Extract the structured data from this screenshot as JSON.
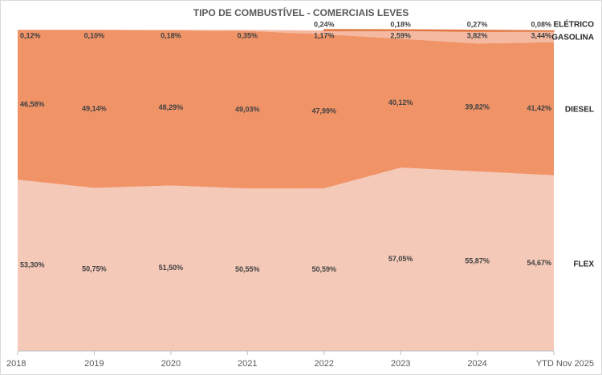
{
  "chart_data": {
    "type": "stacked-area-100",
    "title": "TIPO DE COMBUSTÍVEL - COMERCIAIS LEVES",
    "categories": [
      "2018",
      "2019",
      "2020",
      "2021",
      "2022",
      "2023",
      "2024",
      "YTD Nov 2025"
    ],
    "ylim": [
      0,
      100
    ],
    "series": [
      {
        "name": "FLEX",
        "color": "#f5c9b8",
        "values": [
          53.3,
          50.75,
          51.5,
          50.55,
          50.59,
          57.05,
          55.87,
          54.67
        ],
        "value_labels": [
          "53,30%",
          "50,75%",
          "51,50%",
          "50,55%",
          "50,59%",
          "57,05%",
          "55,87%",
          "54,67%"
        ]
      },
      {
        "name": "DIESEL",
        "color": "#f09468",
        "values": [
          46.58,
          49.14,
          48.29,
          49.03,
          47.99,
          40.12,
          39.82,
          41.42
        ],
        "value_labels": [
          "46,58%",
          "49,14%",
          "48,29%",
          "49,03%",
          "47,99%",
          "40,12%",
          "39,82%",
          "41,42%"
        ]
      },
      {
        "name": "GASOLINA",
        "color": "#f4b9a0",
        "values": [
          0.12,
          0.1,
          0.18,
          0.35,
          1.17,
          2.59,
          3.82,
          3.44
        ],
        "value_labels": [
          "0,12%",
          "0,10%",
          "0,18%",
          "0,35%",
          "1,17%",
          "2,59%",
          "3,82%",
          "3,44%"
        ]
      },
      {
        "name": "ELÉTRICO",
        "color": "#e0743c",
        "values": [
          null,
          null,
          null,
          null,
          0.24,
          0.18,
          0.27,
          0.08
        ],
        "value_labels": [
          null,
          null,
          null,
          null,
          "0,24%",
          "0,18%",
          "0,27%",
          "0,08%"
        ]
      }
    ]
  }
}
